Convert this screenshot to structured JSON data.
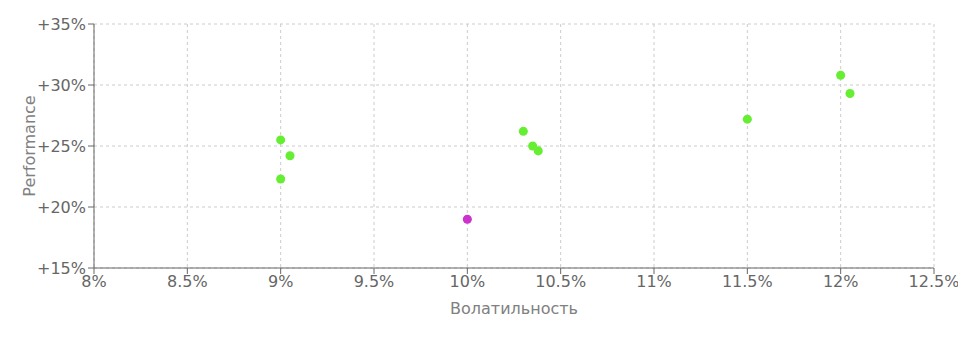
{
  "chart_data": {
    "type": "scatter",
    "xlabel": "Волатильность",
    "ylabel": "Performance",
    "xlim": [
      0.08,
      0.125
    ],
    "ylim": [
      0.15,
      0.35
    ],
    "xticks": [
      {
        "value": 0.08,
        "label": "8%"
      },
      {
        "value": 0.085,
        "label": "8.5%"
      },
      {
        "value": 0.09,
        "label": "9%"
      },
      {
        "value": 0.095,
        "label": "9.5%"
      },
      {
        "value": 0.1,
        "label": "10%"
      },
      {
        "value": 0.105,
        "label": "10.5%"
      },
      {
        "value": 0.11,
        "label": "11%"
      },
      {
        "value": 0.115,
        "label": "11.5%"
      },
      {
        "value": 0.12,
        "label": "12%"
      },
      {
        "value": 0.125,
        "label": "12.5%"
      }
    ],
    "yticks": [
      {
        "value": 0.15,
        "label": "+15%"
      },
      {
        "value": 0.2,
        "label": "+20%"
      },
      {
        "value": 0.25,
        "label": "+25%"
      },
      {
        "value": 0.3,
        "label": "+30%"
      },
      {
        "value": 0.35,
        "label": "+35%"
      }
    ],
    "grid": true,
    "series": [
      {
        "color": "#66ee33",
        "x": [
          0.09,
          0.0905,
          0.09,
          0.103,
          0.1035,
          0.1038,
          0.115,
          0.12,
          0.1205
        ],
        "values": [
          0.255,
          0.242,
          0.223,
          0.262,
          0.25,
          0.246,
          0.272,
          0.308,
          0.293
        ]
      },
      {
        "color": "#cc33cc",
        "x": [
          0.1
        ],
        "values": [
          0.19
        ]
      }
    ]
  }
}
